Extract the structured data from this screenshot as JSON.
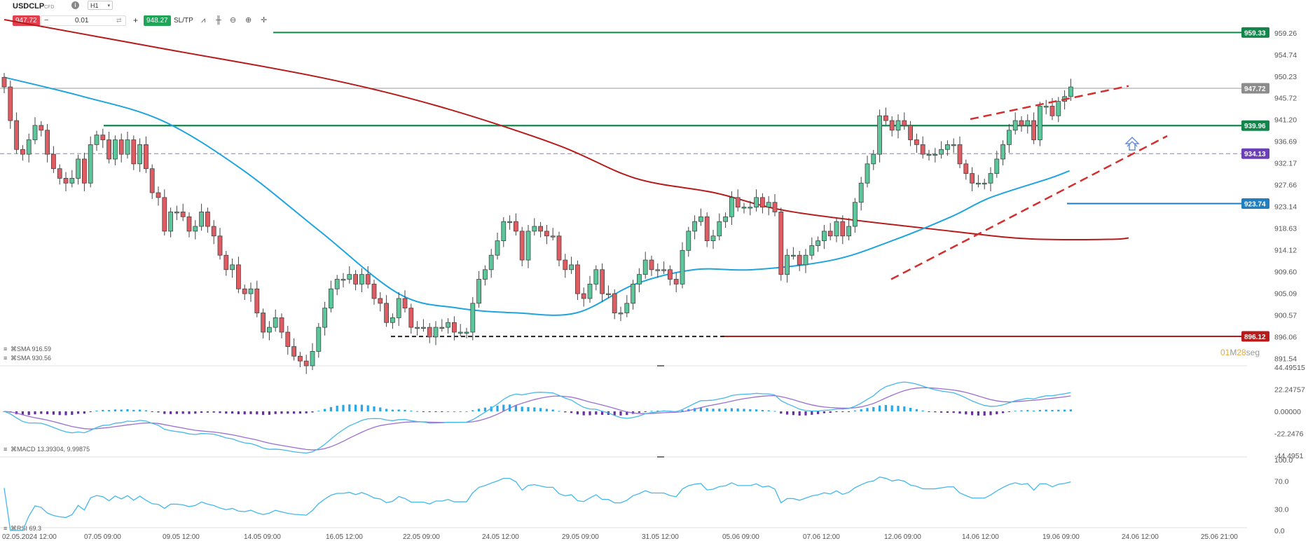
{
  "toolbar": {
    "symbol": "USDCLP",
    "instrument_type": "CFD",
    "info_icon": "info-icon",
    "timeframe": "H1",
    "sell_price": "947.72",
    "quantity": "0.01",
    "buy_price": "948.27",
    "sltp_label": "SL/TP",
    "icons": [
      "line-chart-icon",
      "candles-icon",
      "zoom-out-icon",
      "zoom-in-icon",
      "crosshair-icon"
    ]
  },
  "colors": {
    "bull": "#5cc79b",
    "bear": "#e05c63",
    "sma_fast": "#1ea5e0",
    "sma_slow": "#b71c1c",
    "green_level": "#12864b",
    "purple_level": "#6b3fb5",
    "blue_level": "#1f7fbf",
    "red_level": "#b71c1c"
  },
  "chart_data": [
    {
      "type": "candlestick",
      "symbol": "USDCLP",
      "timeframe": "H1",
      "ylim": [
        890,
        962
      ],
      "y_ticks": [
        "959.26",
        "954.74",
        "950.23",
        "945.72",
        "941.20",
        "936.69",
        "932.17",
        "927.66",
        "923.14",
        "918.63",
        "914.12",
        "909.60",
        "905.09",
        "900.57",
        "896.06",
        "891.54"
      ],
      "x_ticks": [
        "02.05.2024 12:00",
        "07.05 09:00",
        "09.05 12:00",
        "14.05 09:00",
        "16.05 12:00",
        "22.05 09:00",
        "24.05 12:00",
        "29.05 09:00",
        "31.05 12:00",
        "05.06 09:00",
        "07.06 12:00",
        "12.06 09:00",
        "14.06 12:00",
        "19.06 09:00",
        "24.06 12:00",
        "25.06 21:00"
      ],
      "close": [
        948,
        941,
        935,
        934,
        937,
        940,
        939,
        934,
        931,
        929,
        928,
        929,
        933,
        928,
        936,
        938,
        937,
        933,
        937,
        934,
        937,
        932,
        936,
        931,
        926,
        925,
        918,
        922,
        922,
        921,
        918,
        919,
        922,
        919,
        917,
        913,
        910,
        911,
        906,
        905,
        906,
        901,
        897,
        898,
        900,
        897,
        894,
        892,
        891,
        890,
        893,
        898,
        902,
        906,
        908,
        908,
        909,
        907,
        909,
        907,
        904,
        903,
        899,
        900,
        904,
        902,
        898,
        898,
        898,
        896,
        898,
        898,
        899,
        897,
        897,
        897,
        903,
        908,
        910,
        913,
        916,
        920,
        920,
        918,
        912,
        918,
        919,
        918,
        917,
        917,
        912,
        910,
        911,
        905,
        904,
        907,
        910,
        905,
        905,
        901,
        901,
        903,
        907,
        909,
        912,
        910,
        910,
        910,
        908,
        907,
        914,
        918,
        920,
        921,
        916,
        917,
        920,
        921,
        925,
        923,
        923,
        923,
        925,
        923,
        924,
        922,
        909,
        913,
        913,
        911,
        913,
        915,
        916,
        918,
        917,
        920,
        917,
        919,
        924,
        928,
        932,
        934,
        942,
        941,
        939,
        941,
        940,
        937,
        936,
        934,
        934,
        934,
        935,
        936,
        936,
        932,
        930,
        928,
        928,
        928,
        930,
        933,
        936,
        939,
        941,
        940,
        941,
        937,
        944,
        944,
        942,
        945,
        946,
        948
      ],
      "series": [
        {
          "name": "SMA",
          "legend": "SMA 916.59",
          "value": 916.59,
          "anchors": [
            [
              0,
              962
            ],
            [
              40,
              956
            ],
            [
              80,
              950
            ],
            [
              110,
              944
            ],
            [
              140,
              936
            ],
            [
              160,
              929
            ],
            [
              180,
              926
            ],
            [
              200,
              922
            ],
            [
              240,
              918
            ],
            [
              260,
              916.4
            ],
            [
              280,
              916.3
            ],
            [
              285,
              916.59
            ]
          ]
        },
        {
          "name": "SMA",
          "legend": "SMA 930.56",
          "value": 930.56,
          "anchors": [
            [
              0,
              950
            ],
            [
              20,
              946
            ],
            [
              40,
              941
            ],
            [
              60,
              931
            ],
            [
              80,
              918
            ],
            [
              100,
              905
            ],
            [
              115,
              902
            ],
            [
              130,
              901
            ],
            [
              145,
              901
            ],
            [
              160,
              907
            ],
            [
              175,
              910
            ],
            [
              190,
              910
            ],
            [
              210,
              912
            ],
            [
              225,
              916
            ],
            [
              240,
              921
            ],
            [
              250,
              925
            ],
            [
              265,
              929
            ],
            [
              270,
              930.56
            ]
          ]
        }
      ],
      "levels": [
        {
          "value": 959.33,
          "label": "959.33",
          "color": "#12864b"
        },
        {
          "value": 947.72,
          "label": "947.72",
          "color": "#8c8c8c"
        },
        {
          "value": 939.96,
          "label": "939.96",
          "color": "#12864b"
        },
        {
          "value": 934.13,
          "label": "934.13",
          "color": "#6b3fb5"
        },
        {
          "value": 923.74,
          "label": "923.74",
          "color": "#1f7fbf"
        },
        {
          "value": 896.12,
          "label": "896.12",
          "color": "#b71c1c"
        }
      ],
      "countdown": {
        "minutes": "01",
        "m": "M",
        "seconds": "28",
        "s": "seg"
      }
    },
    {
      "type": "bar+line",
      "indicator": "MACD",
      "legend": "MACD 13.39304, 9.99875",
      "macd": 13.39304,
      "signal": 9.99875,
      "ylim": [
        -44.4951,
        44.49515
      ],
      "y_ticks": [
        "44.49515",
        "22.24757",
        "0.00000",
        "-22.2476",
        "-44.4951"
      ]
    },
    {
      "type": "line",
      "indicator": "RSI",
      "legend": "RSI 69.3",
      "value": 69.3,
      "ylim": [
        0,
        100
      ],
      "y_ticks": [
        "100.0",
        "70.0",
        "30.0",
        "0.0"
      ]
    }
  ]
}
